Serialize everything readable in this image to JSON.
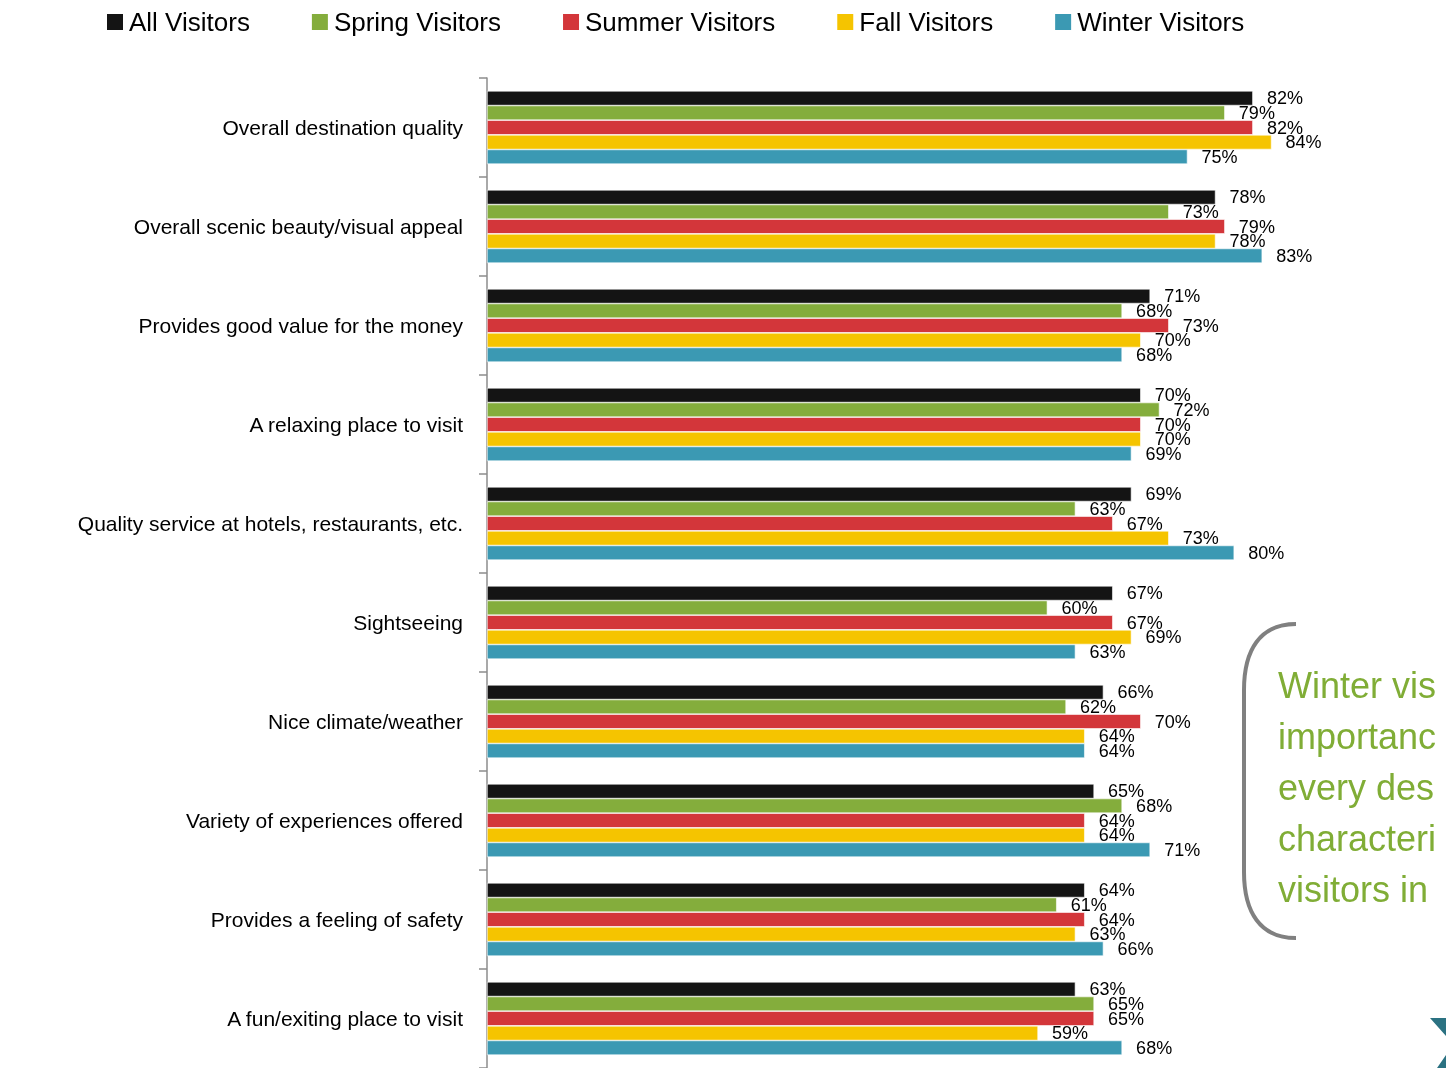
{
  "chart_data": {
    "type": "bar",
    "orientation": "horizontal",
    "categories": [
      "Overall destination quality",
      "Overall scenic beauty/visual appeal",
      "Provides good value for the money",
      "A relaxing place to visit",
      "Quality service at hotels, restaurants, etc.",
      "Sightseeing",
      "Nice climate/weather",
      "Variety of experiences offered",
      "Provides a feeling of safety",
      "A fun/exiting place to visit"
    ],
    "series": [
      {
        "name": "All Visitors",
        "color": "#141414",
        "values": [
          82,
          78,
          71,
          70,
          69,
          67,
          66,
          65,
          64,
          63
        ],
        "value_labels": [
          "82%",
          "78%",
          "71%",
          "70%",
          "69%",
          "67%",
          "66%",
          "65%",
          "64%",
          "63%"
        ]
      },
      {
        "name": "Spring Visitors",
        "color": "#84ad3c",
        "values": [
          79,
          73,
          68,
          72,
          63,
          60,
          62,
          68,
          61,
          65
        ],
        "value_labels": [
          "79%",
          "73%",
          "68%",
          "72%",
          "63%",
          "60%",
          "62%",
          "68%",
          "61%",
          "65%"
        ]
      },
      {
        "name": "Summer Visitors",
        "color": "#d3363a",
        "values": [
          82,
          79,
          73,
          70,
          67,
          67,
          70,
          64,
          64,
          65
        ],
        "value_labels": [
          "82%",
          "79%",
          "73%",
          "70%",
          "67%",
          "67%",
          "70%",
          "64%",
          "64%",
          "65%"
        ]
      },
      {
        "name": "Fall Visitors",
        "color": "#f5c400",
        "values": [
          84,
          78,
          70,
          70,
          73,
          69,
          64,
          64,
          63,
          59
        ],
        "value_labels": [
          "84%",
          "78%",
          "70%",
          "70%",
          "73%",
          "69%",
          "64%",
          "64%",
          "63%",
          "59%"
        ]
      },
      {
        "name": "Winter Visitors",
        "color": "#3b99b3",
        "values": [
          75,
          83,
          68,
          69,
          80,
          63,
          64,
          71,
          66,
          68
        ],
        "value_labels": [
          "75%",
          "83%",
          "68%",
          "69%",
          "80%",
          "63%",
          "64%",
          "71%",
          "66%",
          "68%"
        ]
      }
    ],
    "legend": "top",
    "tick_labels": "y",
    "annotations": [
      "Winter vis importanc every des characteri visitors in"
    ]
  }
}
